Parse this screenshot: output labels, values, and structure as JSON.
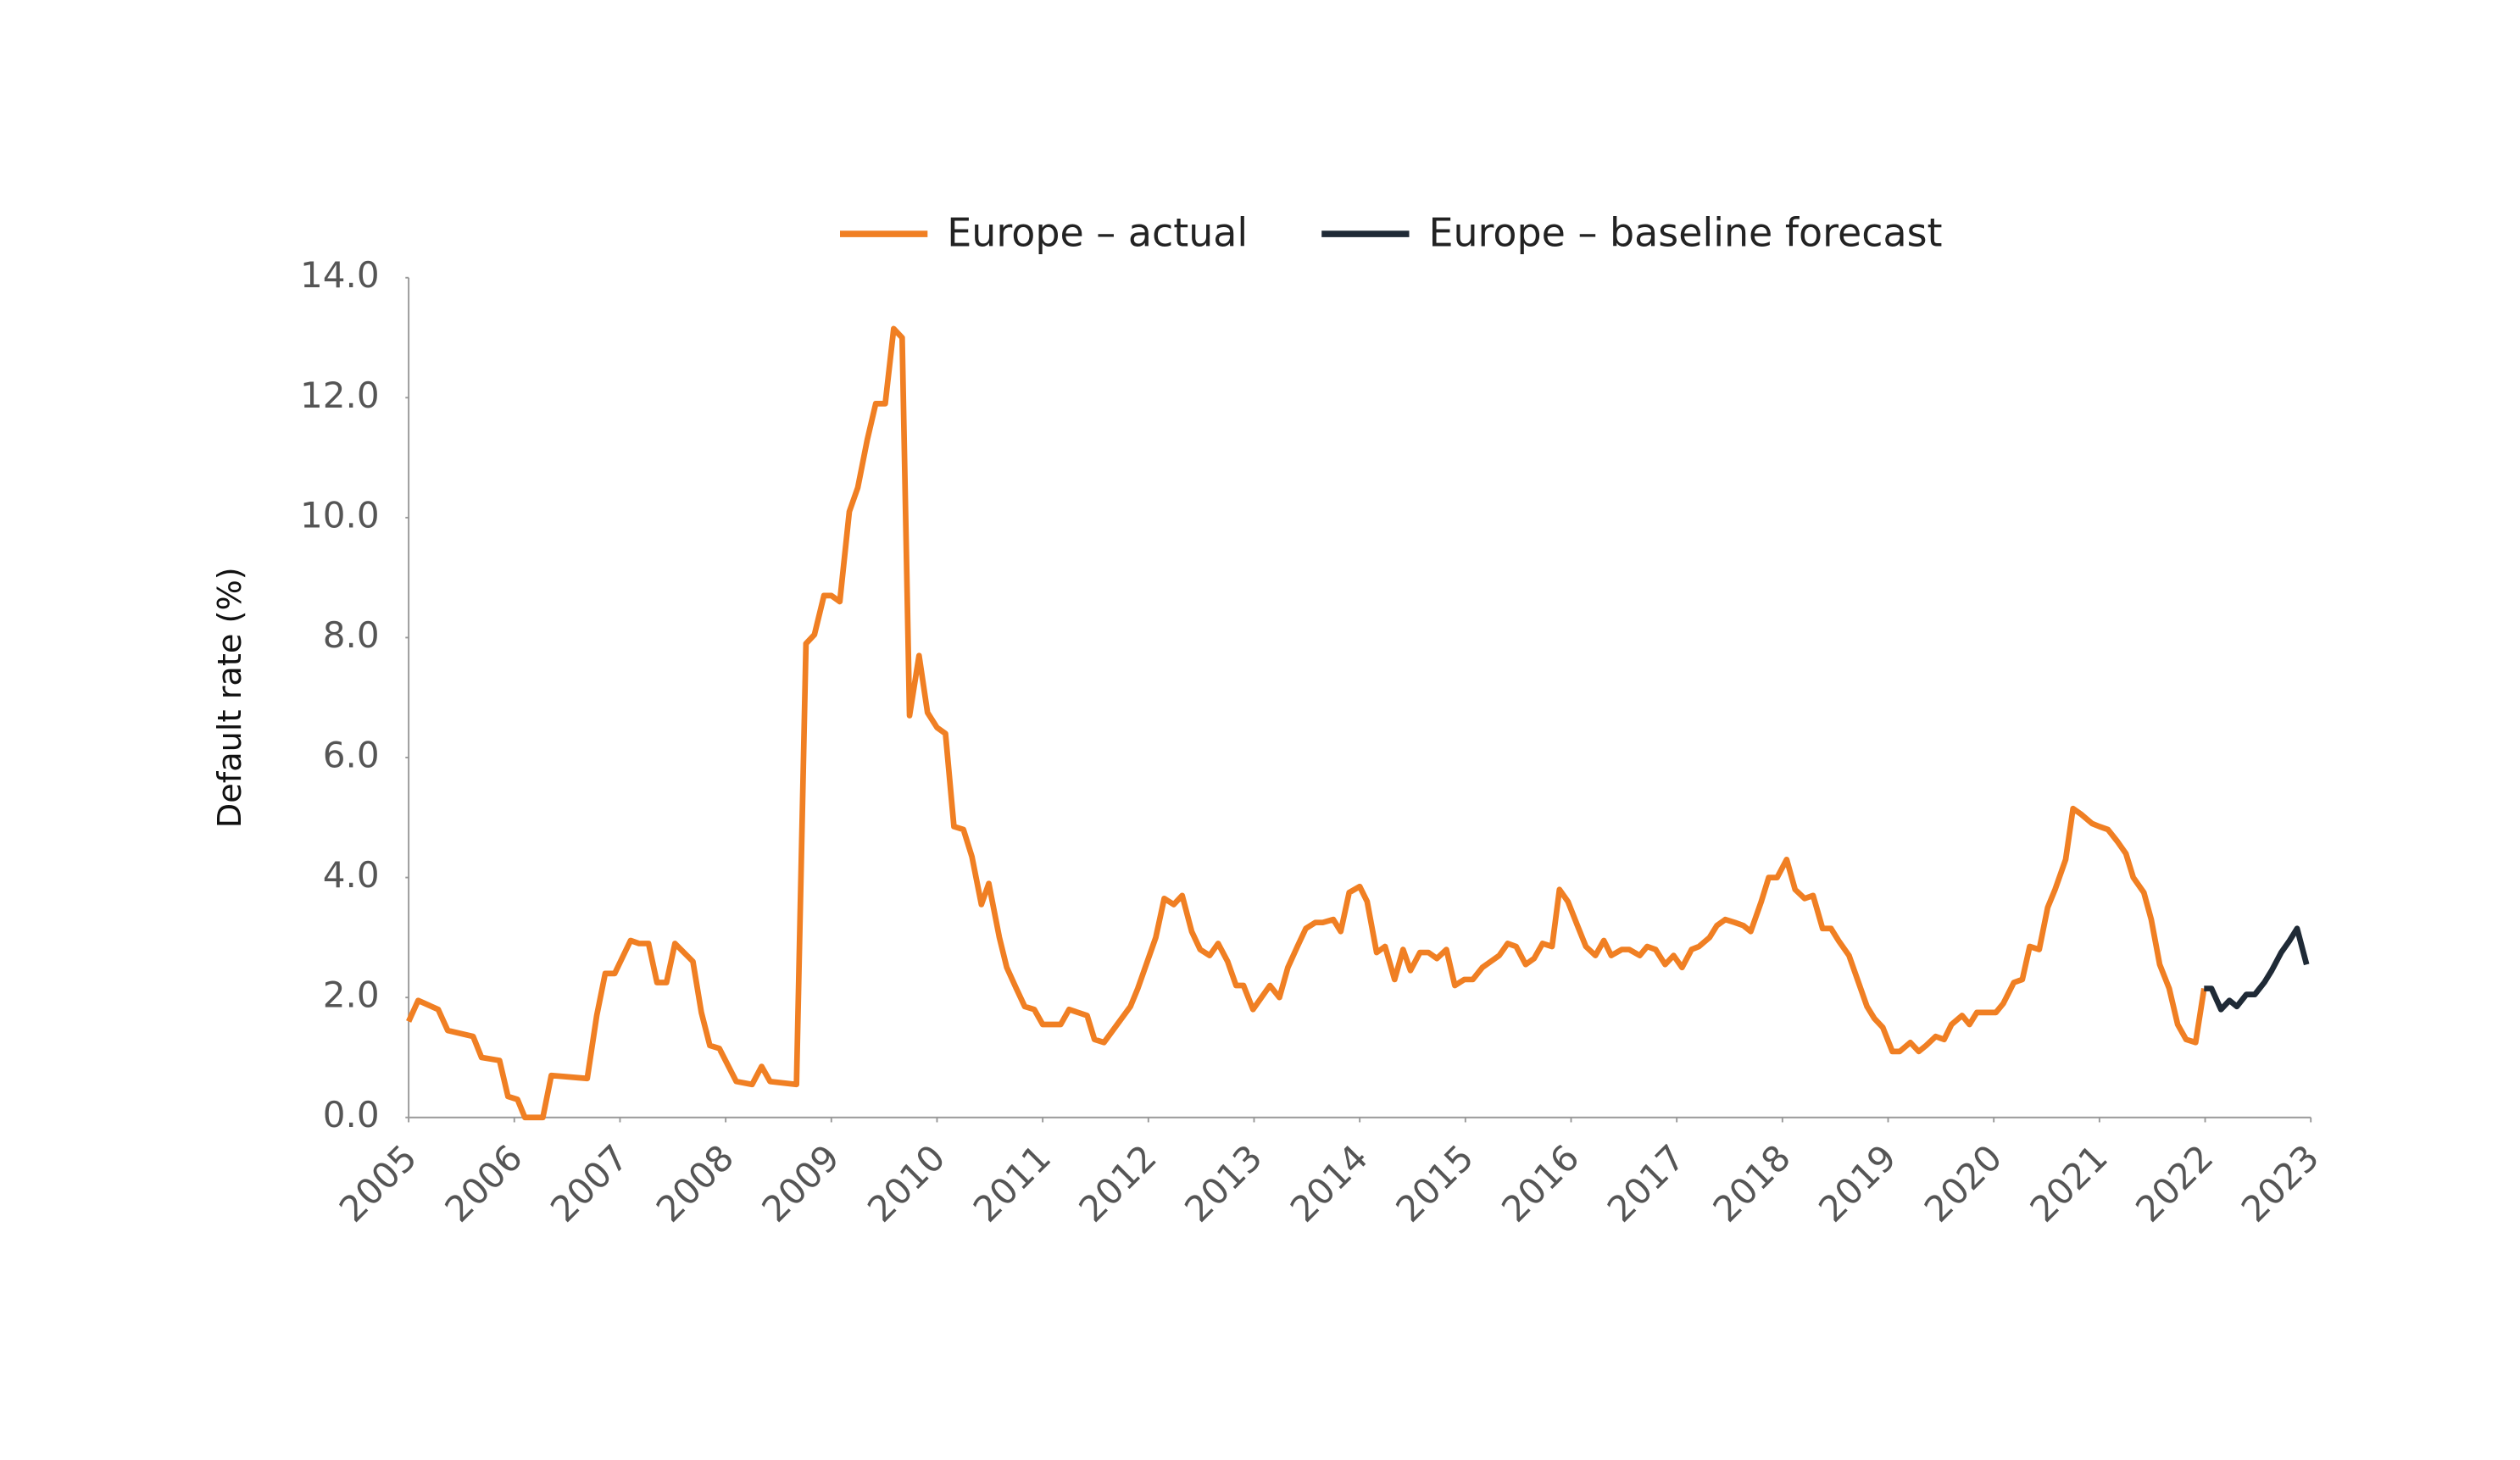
{
  "chart_data": {
    "type": "line",
    "y_label": "Default rate (%)",
    "xlim": [
      2005,
      2023
    ],
    "xticks": [
      2005,
      2006,
      2007,
      2008,
      2009,
      2010,
      2011,
      2012,
      2013,
      2014,
      2015,
      2016,
      2017,
      2018,
      2019,
      2020,
      2021,
      2022,
      2023
    ],
    "ylim": [
      0,
      14
    ],
    "yticks": [
      {
        "value": 0,
        "label": "0.0"
      },
      {
        "value": 2,
        "label": "2.0"
      },
      {
        "value": 4,
        "label": "4.0"
      },
      {
        "value": 6,
        "label": "6.0"
      },
      {
        "value": 8,
        "label": "8.0"
      },
      {
        "value": 10,
        "label": "10.0"
      },
      {
        "value": 12,
        "label": "12.0"
      },
      {
        "value": 14,
        "label": "14.0"
      }
    ],
    "legend": "top",
    "series": [
      {
        "name": "Europe – actual",
        "color": "#f07f23",
        "x": [
          2005.0,
          2005.09,
          2005.28,
          2005.37,
          2005.61,
          2005.69,
          2005.86,
          2005.94,
          2006.03,
          2006.1,
          2006.27,
          2006.35,
          2006.69,
          2006.78,
          2006.86,
          2006.95,
          2007.1,
          2007.18,
          2007.27,
          2007.35,
          2007.44,
          2007.52,
          2007.69,
          2007.77,
          2007.85,
          2007.94,
          2008.1,
          2008.25,
          2008.34,
          2008.42,
          2008.67,
          2008.76,
          2008.84,
          2008.93,
          2009.0,
          2009.08,
          2009.17,
          2009.25,
          2009.34,
          2009.42,
          2009.51,
          2009.59,
          2009.67,
          2009.74,
          2009.83,
          2009.91,
          2010.0,
          2010.08,
          2010.16,
          2010.25,
          2010.33,
          2010.42,
          2010.49,
          2010.59,
          2010.66,
          2010.75,
          2010.83,
          2010.92,
          2011.0,
          2011.17,
          2011.25,
          2011.42,
          2011.49,
          2011.58,
          2011.83,
          2011.9,
          2012.07,
          2012.15,
          2012.24,
          2012.32,
          2012.41,
          2012.49,
          2012.58,
          2012.66,
          2012.75,
          2012.83,
          2012.9,
          2012.99,
          2013.15,
          2013.24,
          2013.32,
          2013.41,
          2013.49,
          2013.58,
          2013.65,
          2013.75,
          2013.82,
          2013.9,
          2014.0,
          2014.07,
          2014.16,
          2014.24,
          2014.33,
          2014.41,
          2014.48,
          2014.57,
          2014.65,
          2014.73,
          2014.82,
          2014.9,
          2014.99,
          2015.07,
          2015.16,
          2015.24,
          2015.32,
          2015.4,
          2015.48,
          2015.57,
          2015.65,
          2015.73,
          2015.82,
          2015.89,
          2015.97,
          2016.06,
          2016.14,
          2016.23,
          2016.31,
          2016.38,
          2016.48,
          2016.55,
          2016.65,
          2016.72,
          2016.8,
          2016.89,
          2016.97,
          2017.05,
          2017.14,
          2017.21,
          2017.31,
          2017.38,
          2017.46,
          2017.55,
          2017.63,
          2017.7,
          2017.8,
          2017.87,
          2017.95,
          2018.04,
          2018.12,
          2018.21,
          2018.29,
          2018.38,
          2018.46,
          2018.53,
          2018.63,
          2018.7,
          2018.8,
          2018.87,
          2018.95,
          2019.04,
          2019.11,
          2019.21,
          2019.29,
          2019.36,
          2019.45,
          2019.53,
          2019.6,
          2019.7,
          2019.77,
          2019.84,
          2019.95,
          2020.02,
          2020.09,
          2020.19,
          2020.27,
          2020.34,
          2020.43,
          2020.51,
          2020.58,
          2020.68,
          2020.75,
          2020.83,
          2020.93,
          2021.0,
          2021.08,
          2021.17,
          2021.25,
          2021.32,
          2021.42,
          2021.49,
          2021.57,
          2021.66,
          2021.74,
          2021.82,
          2021.91,
          2021.99
        ],
        "values": [
          1.6,
          1.95,
          1.8,
          1.45,
          1.35,
          1.0,
          0.95,
          0.35,
          0.3,
          0.0,
          0.0,
          0.7,
          0.65,
          1.7,
          2.4,
          2.4,
          2.95,
          2.9,
          2.9,
          2.25,
          2.25,
          2.9,
          2.6,
          1.75,
          1.2,
          1.15,
          0.6,
          0.55,
          0.85,
          0.6,
          0.55,
          7.9,
          8.05,
          8.7,
          8.7,
          8.6,
          10.1,
          10.5,
          11.3,
          11.9,
          11.9,
          13.15,
          13.0,
          6.7,
          7.7,
          6.75,
          6.5,
          6.4,
          4.85,
          4.8,
          4.35,
          3.55,
          3.9,
          3.0,
          2.5,
          2.15,
          1.85,
          1.8,
          1.55,
          1.55,
          1.8,
          1.7,
          1.3,
          1.25,
          1.85,
          2.15,
          3.0,
          3.65,
          3.55,
          3.7,
          3.1,
          2.8,
          2.7,
          2.9,
          2.6,
          2.2,
          2.2,
          1.8,
          2.2,
          2.0,
          2.5,
          2.85,
          3.15,
          3.25,
          3.25,
          3.3,
          3.1,
          3.75,
          3.85,
          3.6,
          2.75,
          2.85,
          2.3,
          2.8,
          2.45,
          2.75,
          2.75,
          2.65,
          2.8,
          2.2,
          2.3,
          2.3,
          2.5,
          2.6,
          2.7,
          2.9,
          2.85,
          2.55,
          2.65,
          2.9,
          2.85,
          3.8,
          3.6,
          3.2,
          2.85,
          2.7,
          2.95,
          2.7,
          2.8,
          2.8,
          2.7,
          2.85,
          2.8,
          2.55,
          2.7,
          2.5,
          2.8,
          2.85,
          3.0,
          3.2,
          3.3,
          3.25,
          3.2,
          3.1,
          3.6,
          4.0,
          4.0,
          4.3,
          3.8,
          3.65,
          3.7,
          3.15,
          3.15,
          2.95,
          2.7,
          2.35,
          1.85,
          1.65,
          1.5,
          1.1,
          1.1,
          1.25,
          1.1,
          1.2,
          1.35,
          1.3,
          1.55,
          1.7,
          1.55,
          1.75,
          1.75,
          1.75,
          1.9,
          2.25,
          2.3,
          2.85,
          2.8,
          3.5,
          3.8,
          4.3,
          5.15,
          5.05,
          4.9,
          4.85,
          4.8,
          4.6,
          4.4,
          4.0,
          3.75,
          3.3,
          2.55,
          2.15,
          1.55,
          1.3,
          1.25,
          2.15
        ]
      },
      {
        "name": "Europe – baseline forecast",
        "color": "#1f2a36",
        "x": [
          2021.99,
          2022.06,
          2022.15,
          2022.23,
          2022.3,
          2022.39,
          2022.47,
          2022.56,
          2022.63,
          2022.72,
          2022.8,
          2022.87,
          2022.96
        ],
        "values": [
          2.15,
          2.15,
          1.8,
          1.95,
          1.85,
          2.05,
          2.05,
          2.25,
          2.45,
          2.75,
          2.95,
          3.15,
          2.55
        ]
      }
    ]
  }
}
